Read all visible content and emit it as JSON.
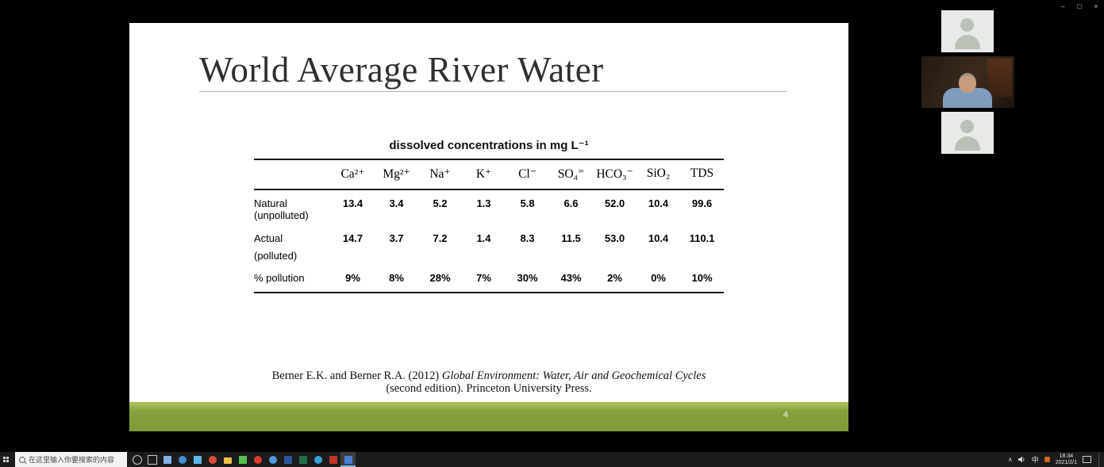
{
  "window": {
    "controls": {
      "minimize": "–",
      "maximize": "□",
      "close": "×"
    }
  },
  "slide": {
    "title": "World Average River Water",
    "table": {
      "caption": "dissolved concentrations in mg L⁻¹",
      "columns": [
        "Ca²⁺",
        "Mg²⁺",
        "Na⁺",
        "K⁺",
        "Cl⁻",
        "SO₄⁼",
        "HCO₃⁻",
        "SiO₂",
        "TDS"
      ],
      "rows": [
        {
          "label": "Natural",
          "sublabel": "(unpolluted)",
          "values": [
            "13.4",
            "3.4",
            "5.2",
            "1.3",
            "5.8",
            "6.6",
            "52.0",
            "10.4",
            "99.6"
          ]
        },
        {
          "label": "Actual",
          "sublabel": "(polluted)",
          "values": [
            "14.7",
            "3.7",
            "7.2",
            "1.4",
            "8.3",
            "11.5",
            "53.0",
            "10.4",
            "110.1"
          ]
        },
        {
          "label": "% pollution",
          "values": [
            "9%",
            "8%",
            "28%",
            "7%",
            "30%",
            "43%",
            "2%",
            "0%",
            "10%"
          ]
        }
      ]
    },
    "citation": {
      "prefix": "Berner E.K. and Berner R.A. (2012) ",
      "italic": "Global Environment: Water, Air and Geochemical Cycles",
      "line2": "(second edition). Princeton University Press."
    },
    "footer": {
      "page_number": "4",
      "bar_color": "#87a23c"
    }
  },
  "participants": {
    "tiles": [
      {
        "type": "placeholder"
      },
      {
        "type": "video"
      },
      {
        "type": "placeholder"
      }
    ]
  },
  "taskbar": {
    "search_placeholder": "在这里输入你要搜索的内容",
    "apps": [
      {
        "name": "cortana",
        "shape": "ring",
        "color": "#c9c9c9"
      },
      {
        "name": "task-view",
        "shape": "square",
        "color": "#c9c9c9",
        "hollow": true
      },
      {
        "name": "mail",
        "shape": "square",
        "color": "#7fb3e8"
      },
      {
        "name": "edge",
        "shape": "circle",
        "color": "#3f8fd2"
      },
      {
        "name": "store",
        "shape": "square",
        "color": "#59b8e8"
      },
      {
        "name": "chrome",
        "shape": "circle",
        "color": "#de4b3b"
      },
      {
        "name": "file-explorer",
        "shape": "folder",
        "color": "#f2c04a"
      },
      {
        "name": "wechat",
        "shape": "square",
        "color": "#53c14e"
      },
      {
        "name": "music",
        "shape": "circle",
        "color": "#e03a31"
      },
      {
        "name": "qq",
        "shape": "circle",
        "color": "#4a98e0"
      },
      {
        "name": "word",
        "shape": "square",
        "color": "#2b579a"
      },
      {
        "name": "excel",
        "shape": "square",
        "color": "#1f7145"
      },
      {
        "name": "browser2",
        "shape": "circle",
        "color": "#35a3da"
      },
      {
        "name": "pdf-reader",
        "shape": "square",
        "color": "#c2342a"
      },
      {
        "name": "meeting-app",
        "shape": "square",
        "color": "#4a7fd6",
        "active": true
      }
    ],
    "tray": {
      "chevron": "∧",
      "ime": "中",
      "badge_color": "#d2691e",
      "time": "18:34",
      "date": "2021/2/1"
    }
  }
}
